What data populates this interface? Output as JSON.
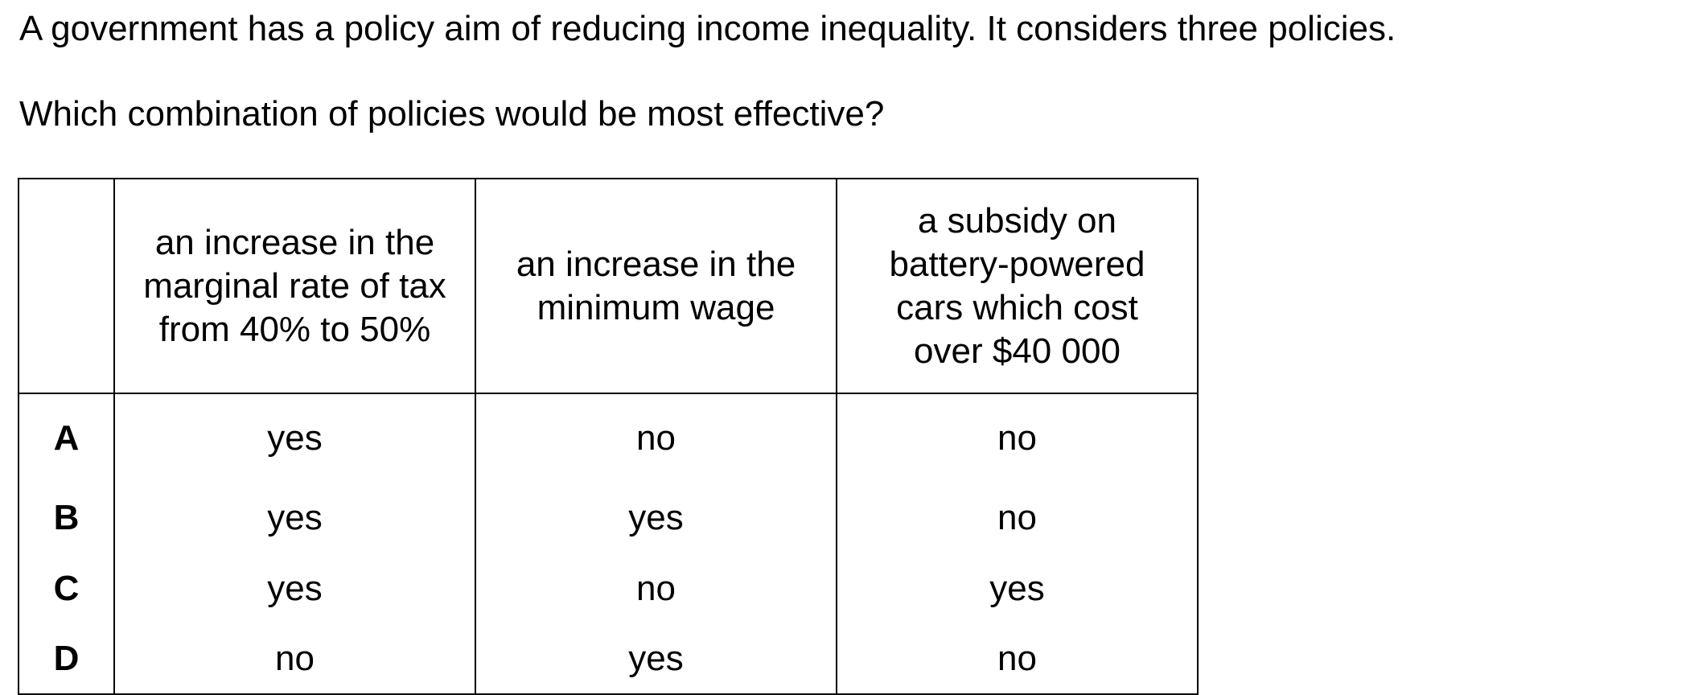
{
  "intro": "A government has a policy aim of reducing income inequality. It considers three policies.",
  "question": "Which combination of policies would be most effective?",
  "table": {
    "headers": [
      "",
      "an increase in the\nmarginal rate of tax\nfrom 40% to 50%",
      "an increase in the\nminimum wage",
      "a subsidy on\nbattery-powered\ncars which cost\nover $40 000"
    ],
    "rows": [
      {
        "option": "A",
        "values": [
          "yes",
          "no",
          "no"
        ]
      },
      {
        "option": "B",
        "values": [
          "yes",
          "yes",
          "no"
        ]
      },
      {
        "option": "C",
        "values": [
          "yes",
          "no",
          "yes"
        ]
      },
      {
        "option": "D",
        "values": [
          "no",
          "yes",
          "no"
        ]
      }
    ]
  }
}
